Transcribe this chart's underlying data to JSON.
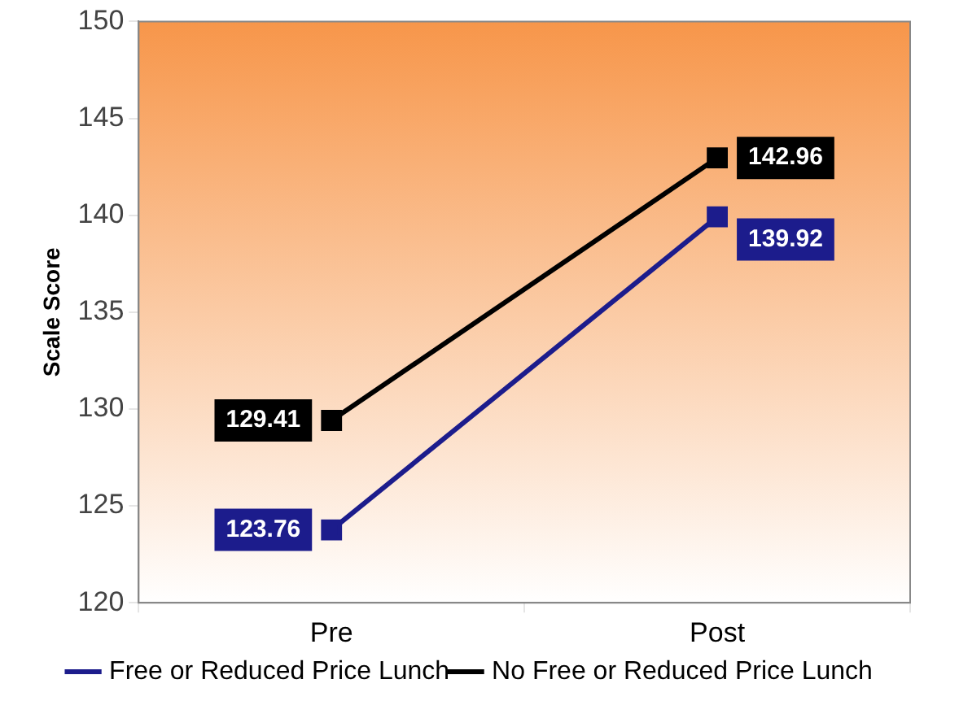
{
  "chart_data": {
    "type": "line",
    "ylabel": "Scale Score",
    "categories": [
      "Pre",
      "Post"
    ],
    "series": [
      {
        "name": "Free or Reduced Price Lunch",
        "color": "#1c1c8c",
        "values": [
          123.76,
          139.92
        ]
      },
      {
        "name": "No Free or Reduced Price Lunch",
        "color": "#000000",
        "values": [
          129.41,
          142.96
        ]
      }
    ],
    "ylim": [
      120,
      150
    ],
    "yticks": [
      120,
      125,
      130,
      135,
      140,
      145,
      150
    ],
    "grid": false,
    "legend": "bottom",
    "marker": "square",
    "line_style": "solid",
    "data_labels": true
  }
}
